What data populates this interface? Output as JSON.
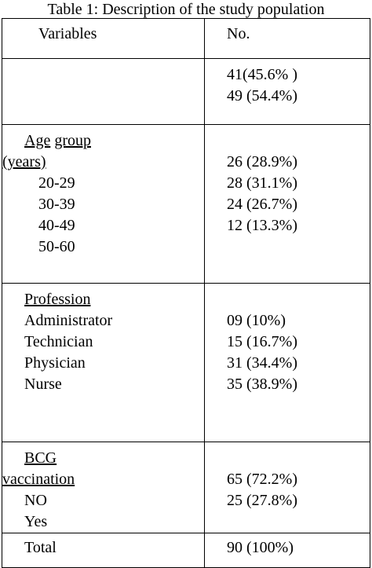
{
  "caption": "Table 1: Description of the study population",
  "header": {
    "variables": "Variables",
    "no": "No."
  },
  "sex": {
    "values": [
      "41(45.6% )",
      "49 (54.4%)"
    ]
  },
  "age": {
    "label_word1": "Age",
    "label_word2": "group",
    "label_line2": "(years)",
    "categories": [
      "20-29",
      "30-39",
      "40-49",
      "50-60"
    ],
    "values": [
      "26 (28.9%)",
      "28 (31.1%)",
      "24 (26.7%)",
      "12 (13.3%)"
    ]
  },
  "profession": {
    "label": "Profession",
    "categories": [
      "Administrator",
      "Technician",
      "Physician",
      "Nurse"
    ],
    "values": [
      "09 (10%)",
      "15 (16.7%)",
      "31 (34.4%)",
      "35 (38.9%)"
    ]
  },
  "bcg": {
    "label_line1": "BCG",
    "label_line2": "vaccination",
    "categories": [
      "NO",
      "Yes"
    ],
    "values": [
      "65 (72.2%)",
      "25 (27.8%)"
    ]
  },
  "total": {
    "label": "Total",
    "value": "90 (100%)"
  }
}
